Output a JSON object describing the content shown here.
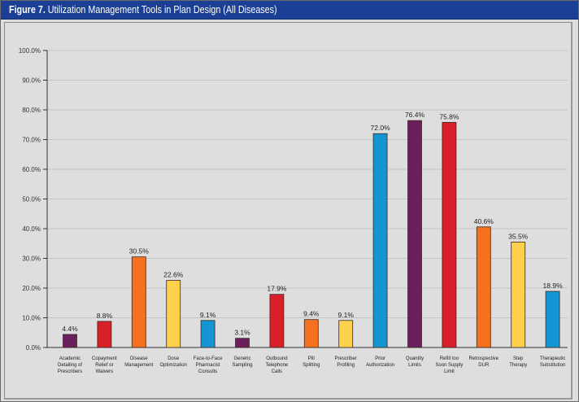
{
  "figure": {
    "number_label": "Figure 7.",
    "title": "Utilization Management Tools in Plan Design (All Diseases)"
  },
  "chart_data": {
    "type": "bar",
    "title": "Figure 7. Utilization Management Tools in Plan Design (All Diseases)",
    "xlabel": "",
    "ylabel": "",
    "ylim": [
      0,
      100
    ],
    "yticks": [
      0,
      10,
      20,
      30,
      40,
      50,
      60,
      70,
      80,
      90,
      100
    ],
    "ytick_labels": [
      "0.0%",
      "10.0%",
      "20.0%",
      "30.0%",
      "40.0%",
      "50.0%",
      "60.0%",
      "70.0%",
      "80.0%",
      "90.0%",
      "100.0%"
    ],
    "grid": true,
    "legend": "none",
    "categories": [
      [
        "Academic",
        "Detailing of",
        "Prescribers"
      ],
      [
        "Copayment",
        "Relief or",
        "Waivers"
      ],
      [
        "Disease",
        "Management"
      ],
      [
        "Dose",
        "Optimization"
      ],
      [
        "Face-to-Face",
        "Pharmacist",
        "Consults"
      ],
      [
        "Generic",
        "Sampling"
      ],
      [
        "Outbound",
        "Telephone",
        "Calls"
      ],
      [
        "Pill",
        "Splitting"
      ],
      [
        "Prescriber",
        "Profiling"
      ],
      [
        "Prior",
        "Authorization"
      ],
      [
        "Quantity",
        "Limits"
      ],
      [
        "Refill too",
        "Soon Supply",
        "Limit"
      ],
      [
        "Retrospective",
        "DUR"
      ],
      [
        "Step",
        "Therapy"
      ],
      [
        "Therapeutic",
        "Substitution"
      ]
    ],
    "values": [
      4.4,
      8.8,
      30.5,
      22.6,
      9.1,
      3.1,
      17.9,
      9.4,
      9.1,
      72.0,
      76.4,
      75.8,
      40.6,
      35.5,
      18.9
    ],
    "value_labels": [
      "4.4%",
      "8.8%",
      "30.5%",
      "22.6%",
      "9.1%",
      "3.1%",
      "17.9%",
      "9.4%",
      "9.1%",
      "72.0%",
      "76.4%",
      "75.8%",
      "40.6%",
      "35.5%",
      "18.9%"
    ],
    "colors": [
      "#6b1f5e",
      "#d91f2a",
      "#f47120",
      "#fdd04d",
      "#1495d4",
      "#6b1f5e",
      "#d91f2a",
      "#f47120",
      "#fdd04d",
      "#1495d4",
      "#6b1f5e",
      "#d91f2a",
      "#f47120",
      "#fdd04d",
      "#1495d4"
    ]
  },
  "colors": {
    "title_bar": "#1a3f94",
    "plot_background": "#dedede",
    "gridline": "#c4c4c4",
    "axis": "#333333"
  }
}
